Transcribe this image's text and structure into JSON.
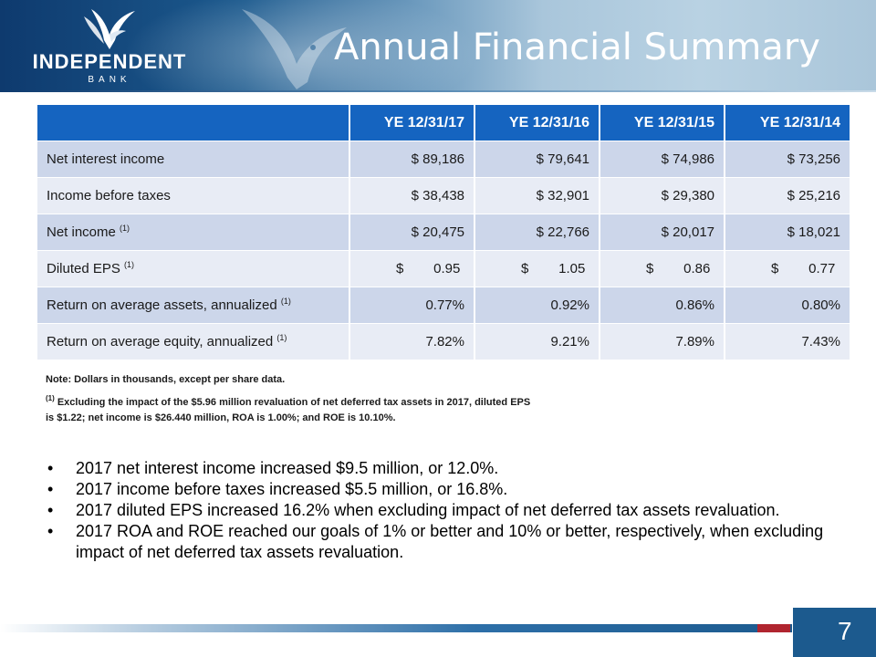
{
  "header": {
    "logo": {
      "name": "INDEPENDENT",
      "sub": "BANK"
    },
    "title": "Annual Financial Summary"
  },
  "table": {
    "columns": [
      "",
      "YE 12/31/17",
      "YE 12/31/16",
      "YE 12/31/15",
      "YE 12/31/14"
    ],
    "rows": [
      {
        "label": "Net interest income",
        "sup": "",
        "values": [
          "$  89,186",
          "$  79,641",
          "$  74,986",
          "$  73,256"
        ]
      },
      {
        "label": "Income before taxes",
        "sup": "",
        "values": [
          "$  38,438",
          "$  32,901",
          "$  29,380",
          "$  25,216"
        ]
      },
      {
        "label": "Net income ",
        "sup": "(1)",
        "values": [
          "$  20,475",
          "$  22,766",
          "$  20,017",
          "$  18,021"
        ]
      },
      {
        "label": "Diluted EPS ",
        "sup": "(1)",
        "eps": true,
        "currency": "$",
        "values": [
          "0.95",
          "1.05",
          "0.86",
          "0.77"
        ]
      },
      {
        "label": "Return on average assets, annualized ",
        "sup": "(1)",
        "values": [
          "0.77%",
          "0.92%",
          "0.86%",
          "0.80%"
        ]
      },
      {
        "label": "Return on average equity, annualized ",
        "sup": "(1)",
        "values": [
          "7.82%",
          "9.21%",
          "7.89%",
          "7.43%"
        ]
      }
    ]
  },
  "notes": {
    "note": "Note:  Dollars in thousands, except per share data.",
    "footnote_marker": "(1)",
    "footnote_line1": " Excluding the impact of the $5.96 million revaluation of net deferred tax assets in 2017, diluted EPS",
    "footnote_line2": "is $1.22; net income is $26.440 million, ROA is 1.00%; and ROE is 10.10%."
  },
  "bullets": [
    "2017 net interest income increased $9.5 million, or 12.0%.",
    "2017 income before taxes increased $5.5 million, or 16.8%.",
    "2017 diluted EPS increased 16.2% when excluding impact of net deferred tax assets revaluation.",
    "2017 ROA and ROE reached our goals of 1% or better and 10% or better, respectively, when excluding impact of net deferred tax assets revaluation."
  ],
  "bullet_glyph": "•",
  "footer": {
    "page_number": "7"
  },
  "colors": {
    "table_header": "#1564c0",
    "row_odd": "#ccd6ea",
    "row_even": "#e8ecf5",
    "brand_blue": "#1c5a8e",
    "accent_red": "#b0252f"
  }
}
